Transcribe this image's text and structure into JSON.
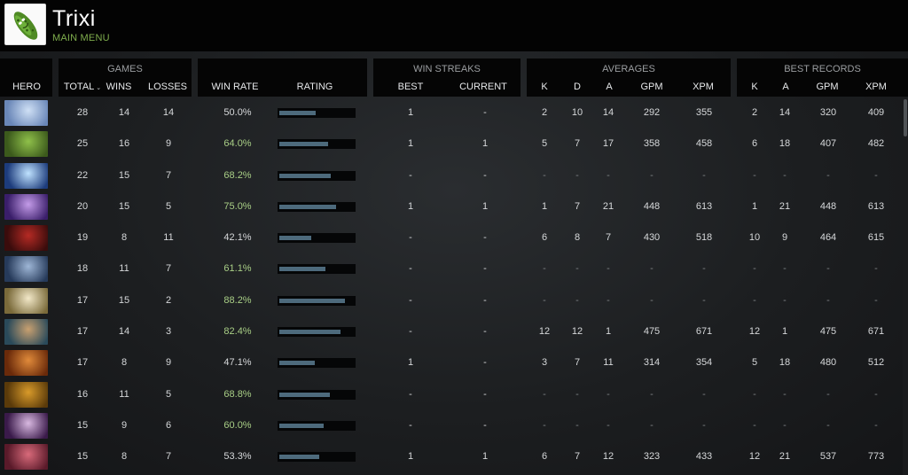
{
  "player": {
    "name": "Trixi",
    "menu_link": "MAIN MENU"
  },
  "header": {
    "groups": {
      "games": "GAMES",
      "win_streaks": "WIN STREAKS",
      "averages": "AVERAGES",
      "best_records": "BEST RECORDS"
    },
    "columns": {
      "hero": "HERO",
      "total": "TOTAL",
      "wins": "WINS",
      "losses": "LOSSES",
      "win_rate": "WIN RATE",
      "rating": "RATING",
      "best": "BEST",
      "current": "CURRENT",
      "avg_k": "K",
      "avg_d": "D",
      "avg_a": "A",
      "avg_gpm": "GPM",
      "avg_xpm": "XPM",
      "rec_k": "K",
      "rec_a": "A",
      "rec_gpm": "GPM",
      "rec_xpm": "XPM"
    },
    "sort_indicator": "⌄"
  },
  "colors": {
    "accent_green": "#7fae4d",
    "good_winrate": "#a9cf86",
    "rating_bar": "#4d6a7c"
  },
  "rows": [
    {
      "hero_icon": "crystal-maiden",
      "total": "28",
      "wins": "14",
      "losses": "14",
      "win_rate": "50.0%",
      "rating": 0.48,
      "best": "1",
      "current": "-",
      "k": "2",
      "d": "10",
      "a": "14",
      "gpm": "292",
      "xpm": "355",
      "rk": "2",
      "ra": "14",
      "rgpm": "320",
      "rxpm": "409",
      "c1": "#6a87b8",
      "c2": "#cfe0f5"
    },
    {
      "hero_icon": "rubick",
      "total": "25",
      "wins": "16",
      "losses": "9",
      "win_rate": "64.0%",
      "rating": 0.64,
      "best": "1",
      "current": "1",
      "k": "5",
      "d": "7",
      "a": "17",
      "gpm": "358",
      "xpm": "458",
      "rk": "6",
      "ra": "18",
      "rgpm": "407",
      "rxpm": "482",
      "c1": "#3c5a1c",
      "c2": "#8fc04a"
    },
    {
      "hero_icon": "wisp",
      "total": "22",
      "wins": "15",
      "losses": "7",
      "win_rate": "68.2%",
      "rating": 0.68,
      "best": "-",
      "current": "-",
      "k": "-",
      "d": "-",
      "a": "-",
      "gpm": "-",
      "xpm": "-",
      "rk": "-",
      "ra": "-",
      "rgpm": "-",
      "rxpm": "-",
      "c1": "#1d3c7c",
      "c2": "#bfe2ff"
    },
    {
      "hero_icon": "spectre",
      "total": "20",
      "wins": "15",
      "losses": "5",
      "win_rate": "75.0%",
      "rating": 0.74,
      "best": "1",
      "current": "1",
      "k": "1",
      "d": "7",
      "a": "21",
      "gpm": "448",
      "xpm": "613",
      "rk": "1",
      "ra": "21",
      "rgpm": "448",
      "rxpm": "613",
      "c1": "#3a1e6a",
      "c2": "#c39be8"
    },
    {
      "hero_icon": "shadow-demon",
      "total": "19",
      "wins": "8",
      "losses": "11",
      "win_rate": "42.1%",
      "rating": 0.42,
      "best": "-",
      "current": "-",
      "k": "6",
      "d": "8",
      "a": "7",
      "gpm": "430",
      "xpm": "518",
      "rk": "10",
      "ra": "9",
      "rgpm": "464",
      "rxpm": "615",
      "c1": "#3a0c0c",
      "c2": "#b52a24"
    },
    {
      "hero_icon": "drow-ranger",
      "total": "18",
      "wins": "11",
      "losses": "7",
      "win_rate": "61.1%",
      "rating": 0.61,
      "best": "-",
      "current": "-",
      "k": "-",
      "d": "-",
      "a": "-",
      "gpm": "-",
      "xpm": "-",
      "rk": "-",
      "ra": "-",
      "rgpm": "-",
      "rxpm": "-",
      "c1": "#263a5a",
      "c2": "#9eb6d6"
    },
    {
      "hero_icon": "keeper-of-the-light",
      "total": "17",
      "wins": "15",
      "losses": "2",
      "win_rate": "88.2%",
      "rating": 0.86,
      "best": "-",
      "current": "-",
      "k": "-",
      "d": "-",
      "a": "-",
      "gpm": "-",
      "xpm": "-",
      "rk": "-",
      "ra": "-",
      "rgpm": "-",
      "rxpm": "-",
      "c1": "#7a6a3a",
      "c2": "#f2e8c8"
    },
    {
      "hero_icon": "sniper",
      "total": "17",
      "wins": "14",
      "losses": "3",
      "win_rate": "82.4%",
      "rating": 0.8,
      "best": "-",
      "current": "-",
      "k": "12",
      "d": "12",
      "a": "1",
      "gpm": "475",
      "xpm": "671",
      "rk": "12",
      "ra": "1",
      "rgpm": "475",
      "rxpm": "671",
      "c1": "#2a4a5a",
      "c2": "#c8a070"
    },
    {
      "hero_icon": "ogre-magi",
      "total": "17",
      "wins": "8",
      "losses": "9",
      "win_rate": "47.1%",
      "rating": 0.47,
      "best": "1",
      "current": "-",
      "k": "3",
      "d": "7",
      "a": "11",
      "gpm": "314",
      "xpm": "354",
      "rk": "5",
      "ra": "18",
      "rgpm": "480",
      "rxpm": "512",
      "c1": "#6a2a0a",
      "c2": "#e08a3a"
    },
    {
      "hero_icon": "bounty-hunter",
      "total": "16",
      "wins": "11",
      "losses": "5",
      "win_rate": "68.8%",
      "rating": 0.66,
      "best": "-",
      "current": "-",
      "k": "-",
      "d": "-",
      "a": "-",
      "gpm": "-",
      "xpm": "-",
      "rk": "-",
      "ra": "-",
      "rgpm": "-",
      "rxpm": "-",
      "c1": "#5a3a0a",
      "c2": "#d89a2a"
    },
    {
      "hero_icon": "templar-assassin",
      "total": "15",
      "wins": "9",
      "losses": "6",
      "win_rate": "60.0%",
      "rating": 0.58,
      "best": "-",
      "current": "-",
      "k": "-",
      "d": "-",
      "a": "-",
      "gpm": "-",
      "xpm": "-",
      "rk": "-",
      "ra": "-",
      "rgpm": "-",
      "rxpm": "-",
      "c1": "#3a1a4a",
      "c2": "#d8b8e0"
    },
    {
      "hero_icon": "queen-of-pain",
      "total": "15",
      "wins": "8",
      "losses": "7",
      "win_rate": "53.3%",
      "rating": 0.52,
      "best": "1",
      "current": "1",
      "k": "6",
      "d": "7",
      "a": "12",
      "gpm": "323",
      "xpm": "433",
      "rk": "12",
      "ra": "21",
      "rgpm": "537",
      "rxpm": "773",
      "c1": "#5a1a2a",
      "c2": "#d86a7a"
    }
  ]
}
